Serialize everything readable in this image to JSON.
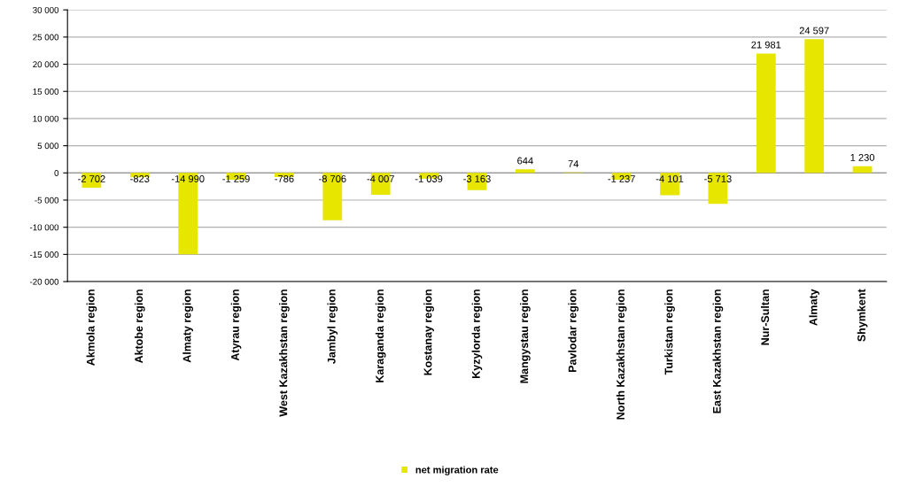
{
  "chart_data": {
    "type": "bar",
    "categories": [
      "Akmola region",
      "Aktobe region",
      "Almaty region",
      "Atyrau region",
      "West Kazakhstan region",
      "Jambyl region",
      "Karaganda region",
      "Kostanay region",
      "Kyzylorda region",
      "Mangystau region",
      "Pavlodar region",
      "North Kazakhstan region",
      "Turkistan region",
      "East Kazakhstan region",
      "Nur-Sultan",
      "Almaty",
      "Shymkent"
    ],
    "series": [
      {
        "name": "net migration rate",
        "color": "#e6e600",
        "values": [
          -2702,
          -823,
          -14990,
          -1259,
          -786,
          -8706,
          -4007,
          -1039,
          -3163,
          644,
          74,
          -1237,
          -4101,
          -5713,
          21981,
          24597,
          1230
        ],
        "value_labels": [
          "-2 702",
          "-823",
          "-14 990",
          "-1 259",
          "-786",
          "-8 706",
          "-4 007",
          "-1 039",
          "-3 163",
          "644",
          "74",
          "-1 237",
          "-4 101",
          "-5 713",
          "21 981",
          "24 597",
          "1 230"
        ]
      }
    ],
    "ylim": [
      -20000,
      30000
    ],
    "yticks": [
      {
        "value": -20000,
        "label": "-20 000"
      },
      {
        "value": -15000,
        "label": "-15 000"
      },
      {
        "value": -10000,
        "label": "-10 000"
      },
      {
        "value": -5000,
        "label": "-5 000"
      },
      0,
      {
        "value": 5000,
        "label": "5 000"
      },
      {
        "value": 10000,
        "label": "10 000"
      },
      {
        "value": 15000,
        "label": "15 000"
      },
      {
        "value": 20000,
        "label": "20 000"
      },
      {
        "value": 25000,
        "label": "25 000"
      },
      {
        "value": 30000,
        "label": "30 000"
      }
    ],
    "grid": "y",
    "legend": "bottom"
  }
}
